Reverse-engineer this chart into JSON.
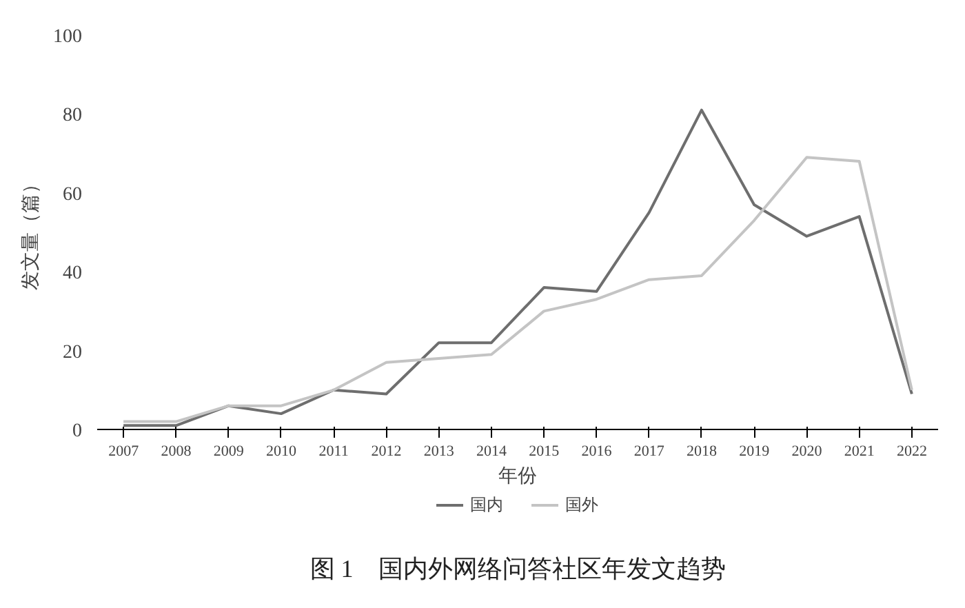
{
  "chart_data": {
    "type": "line",
    "title": "图 1　国内外网络问答社区年发文趋势",
    "xlabel": "年份",
    "ylabel": "发文量（篇）",
    "categories": [
      "2007",
      "2008",
      "2009",
      "2010",
      "2011",
      "2012",
      "2013",
      "2014",
      "2015",
      "2016",
      "2017",
      "2018",
      "2019",
      "2020",
      "2021",
      "2022"
    ],
    "series": [
      {
        "name": "国内",
        "color": "#6e6e6e",
        "values": [
          1,
          1,
          6,
          4,
          10,
          9,
          22,
          22,
          36,
          35,
          55,
          81,
          57,
          49,
          54,
          9
        ]
      },
      {
        "name": "国外",
        "color": "#c4c4c4",
        "values": [
          2,
          2,
          6,
          6,
          10,
          17,
          18,
          19,
          30,
          33,
          38,
          39,
          53,
          69,
          68,
          10
        ]
      }
    ],
    "ylim": [
      0,
      100
    ],
    "yticks": [
      0,
      20,
      40,
      60,
      80,
      100
    ],
    "grid": false,
    "legend": "bottom",
    "marker": "none",
    "line_style": "solid"
  }
}
